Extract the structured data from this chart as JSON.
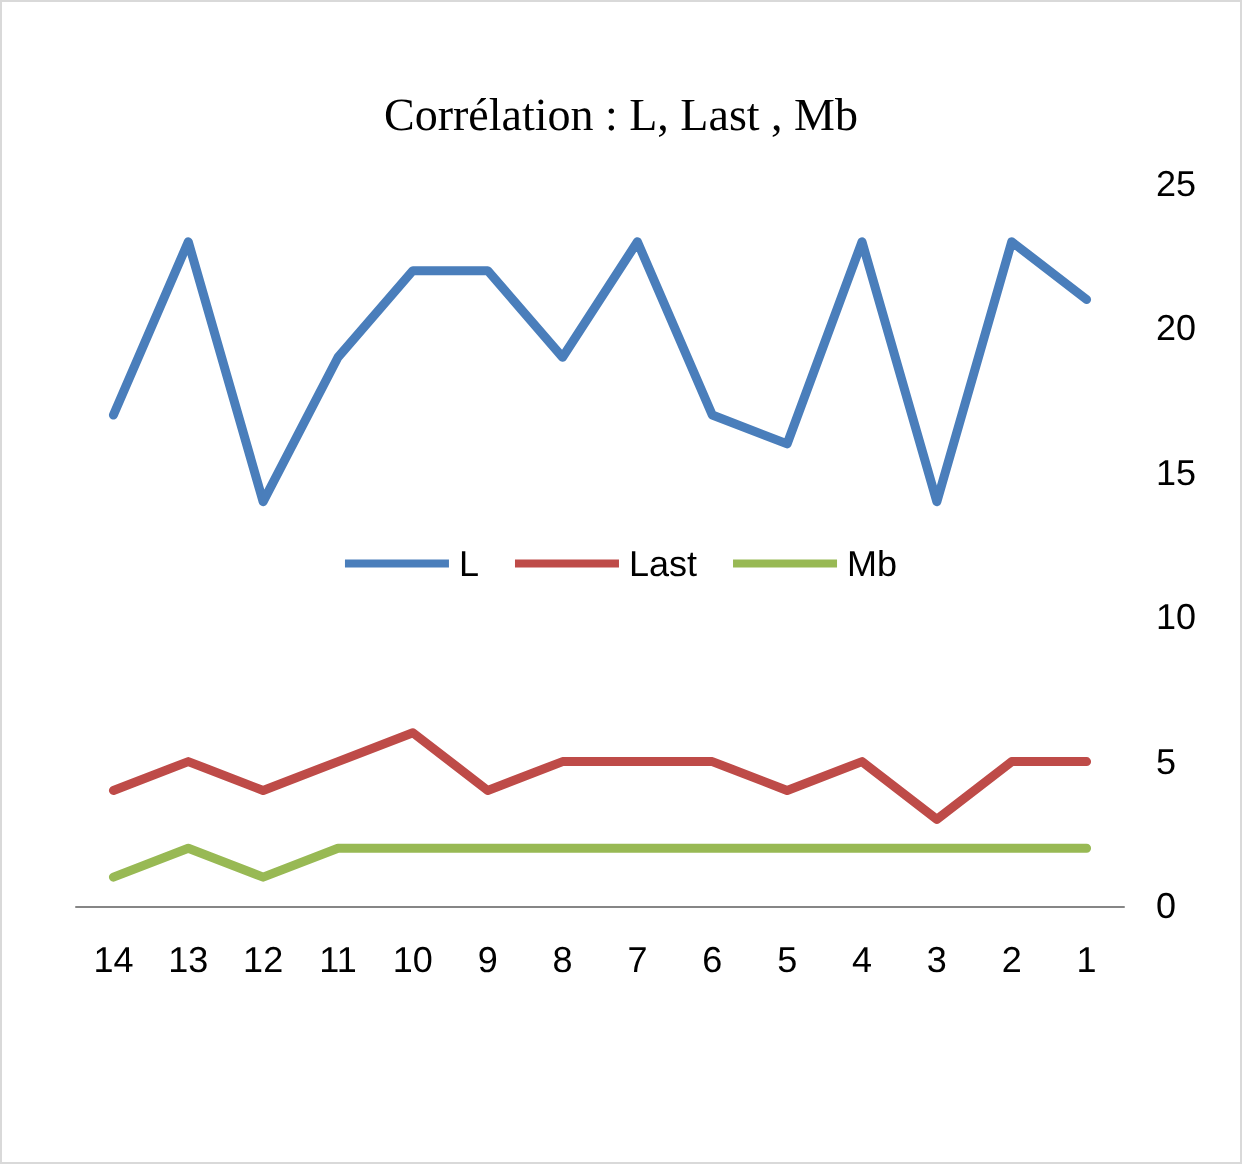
{
  "chart_data": {
    "type": "line",
    "title": "Corrélation : L, Last , Mb",
    "categories": [
      "14",
      "13",
      "12",
      "11",
      "10",
      "9",
      "8",
      "7",
      "6",
      "5",
      "4",
      "3",
      "2",
      "1"
    ],
    "series": [
      {
        "name": "L",
        "color": "#4a7ebb",
        "values": [
          17,
          23,
          14,
          19,
          22,
          22,
          19,
          23,
          17,
          16,
          23,
          14,
          23,
          21
        ]
      },
      {
        "name": "Last",
        "color": "#be4b48",
        "values": [
          4,
          5,
          4,
          5,
          6,
          4,
          5,
          5,
          5,
          4,
          5,
          3,
          5,
          5
        ]
      },
      {
        "name": "Mb",
        "color": "#98b954",
        "values": [
          1,
          2,
          1,
          2,
          2,
          2,
          2,
          2,
          2,
          2,
          2,
          2,
          2,
          2
        ]
      }
    ],
    "ylim": [
      0,
      25
    ],
    "yticks": [
      0,
      5,
      10,
      15,
      20,
      25
    ],
    "grid": false,
    "legend": "center",
    "marker": "none",
    "line_style": "solid"
  }
}
